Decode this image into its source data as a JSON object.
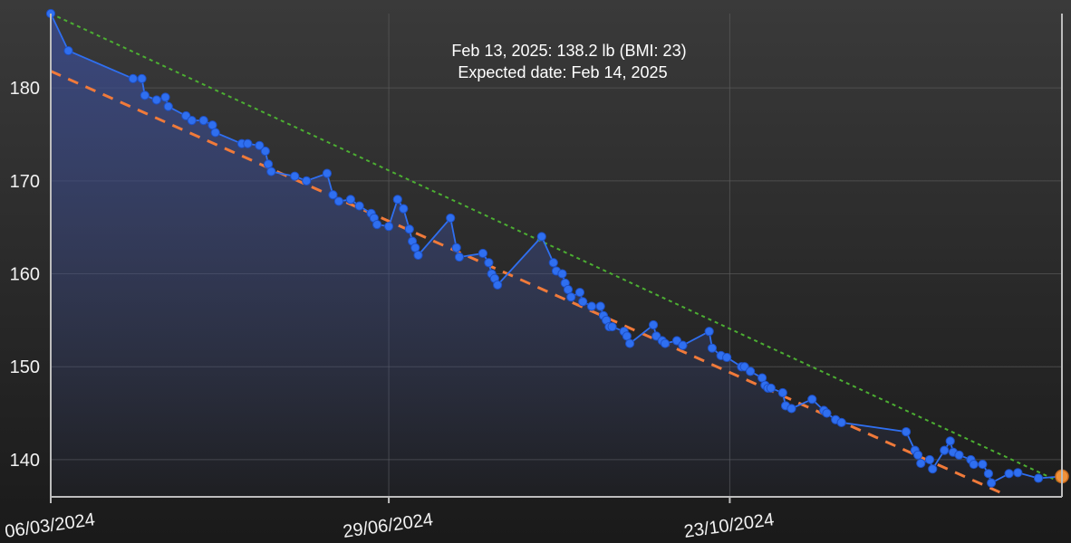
{
  "info": {
    "line1": "Feb 13, 2025: 138.2 lb (BMI: 23)",
    "line2": "Expected date: Feb 14, 2025"
  },
  "colors": {
    "background_top": "#3a3a3a",
    "background_bottom": "#1a1a1a",
    "series": "#2f6ff0",
    "area_fill": "#3a4a8a",
    "trend_dashed": "#f07a3a",
    "target_dotted": "#4caf32",
    "highlight_point": "#f0923a",
    "grid": "#5a5a5a",
    "axis": "#bdbdbd"
  },
  "chart_data": {
    "type": "line",
    "x_axis": {
      "type": "date",
      "range": [
        "2024-03-06",
        "2025-02-13"
      ],
      "ticks": [
        {
          "date": "2024-03-06",
          "label": "06/03/2024"
        },
        {
          "date": "2024-06-29",
          "label": "29/06/2024"
        },
        {
          "date": "2024-10-23",
          "label": "23/10/2024"
        }
      ],
      "label_rotation_deg": -8
    },
    "y_axis": {
      "range": [
        136,
        188
      ],
      "ticks": [
        140,
        150,
        160,
        170,
        180
      ],
      "position": "left"
    },
    "grid": true,
    "series": [
      {
        "style": "line-with-points-and-area",
        "points": [
          [
            "2024-03-06",
            188.0
          ],
          [
            "2024-03-12",
            184.0
          ],
          [
            "2024-04-03",
            181.0
          ],
          [
            "2024-04-06",
            181.0
          ],
          [
            "2024-04-07",
            179.2
          ],
          [
            "2024-04-11",
            178.7
          ],
          [
            "2024-04-14",
            179.0
          ],
          [
            "2024-04-15",
            178.0
          ],
          [
            "2024-04-21",
            177.0
          ],
          [
            "2024-04-23",
            176.5
          ],
          [
            "2024-04-27",
            176.5
          ],
          [
            "2024-04-30",
            176.0
          ],
          [
            "2024-05-01",
            175.2
          ],
          [
            "2024-05-10",
            174.0
          ],
          [
            "2024-05-12",
            174.0
          ],
          [
            "2024-05-16",
            173.8
          ],
          [
            "2024-05-18",
            173.2
          ],
          [
            "2024-05-19",
            171.8
          ],
          [
            "2024-05-20",
            171.0
          ],
          [
            "2024-05-28",
            170.5
          ],
          [
            "2024-06-01",
            170.0
          ],
          [
            "2024-06-08",
            170.8
          ],
          [
            "2024-06-10",
            168.5
          ],
          [
            "2024-06-12",
            167.8
          ],
          [
            "2024-06-16",
            168.0
          ],
          [
            "2024-06-19",
            167.3
          ],
          [
            "2024-06-23",
            166.5
          ],
          [
            "2024-06-24",
            166.0
          ],
          [
            "2024-06-25",
            165.3
          ],
          [
            "2024-06-29",
            165.1
          ],
          [
            "2024-07-02",
            168.0
          ],
          [
            "2024-07-04",
            167.0
          ],
          [
            "2024-07-06",
            164.8
          ],
          [
            "2024-07-07",
            163.5
          ],
          [
            "2024-07-08",
            162.8
          ],
          [
            "2024-07-09",
            162.0
          ],
          [
            "2024-07-20",
            166.0
          ],
          [
            "2024-07-22",
            162.8
          ],
          [
            "2024-07-23",
            161.8
          ],
          [
            "2024-07-31",
            162.2
          ],
          [
            "2024-08-02",
            161.2
          ],
          [
            "2024-08-03",
            160.0
          ],
          [
            "2024-08-04",
            159.5
          ],
          [
            "2024-08-05",
            158.8
          ],
          [
            "2024-08-20",
            164.0
          ],
          [
            "2024-08-24",
            161.2
          ],
          [
            "2024-08-25",
            160.3
          ],
          [
            "2024-08-27",
            160.0
          ],
          [
            "2024-08-28",
            159.0
          ],
          [
            "2024-08-29",
            158.3
          ],
          [
            "2024-08-30",
            157.5
          ],
          [
            "2024-09-02",
            158.0
          ],
          [
            "2024-09-03",
            157.0
          ],
          [
            "2024-09-06",
            156.5
          ],
          [
            "2024-09-09",
            156.5
          ],
          [
            "2024-09-10",
            155.5
          ],
          [
            "2024-09-11",
            155.0
          ],
          [
            "2024-09-12",
            154.3
          ],
          [
            "2024-09-13",
            154.3
          ],
          [
            "2024-09-17",
            153.8
          ],
          [
            "2024-09-18",
            153.3
          ],
          [
            "2024-09-19",
            152.5
          ],
          [
            "2024-09-27",
            154.5
          ],
          [
            "2024-09-28",
            153.3
          ],
          [
            "2024-09-30",
            152.8
          ],
          [
            "2024-10-01",
            152.5
          ],
          [
            "2024-10-05",
            152.8
          ],
          [
            "2024-10-07",
            152.3
          ],
          [
            "2024-10-16",
            153.8
          ],
          [
            "2024-10-17",
            152.0
          ],
          [
            "2024-10-20",
            151.2
          ],
          [
            "2024-10-22",
            151.0
          ],
          [
            "2024-10-27",
            150.0
          ],
          [
            "2024-10-28",
            150.0
          ],
          [
            "2024-10-30",
            149.5
          ],
          [
            "2024-11-03",
            148.8
          ],
          [
            "2024-11-04",
            148.0
          ],
          [
            "2024-11-05",
            147.7
          ],
          [
            "2024-11-06",
            147.7
          ],
          [
            "2024-11-10",
            147.2
          ],
          [
            "2024-11-11",
            145.8
          ],
          [
            "2024-11-13",
            145.5
          ],
          [
            "2024-11-20",
            146.5
          ],
          [
            "2024-11-24",
            145.3
          ],
          [
            "2024-11-25",
            145.0
          ],
          [
            "2024-11-28",
            144.3
          ],
          [
            "2024-11-30",
            144.0
          ],
          [
            "2024-12-22",
            143.0
          ],
          [
            "2024-12-25",
            141.0
          ],
          [
            "2024-12-26",
            140.5
          ],
          [
            "2024-12-27",
            139.6
          ],
          [
            "2024-12-30",
            140.0
          ],
          [
            "2024-12-31",
            139.0
          ],
          [
            "2025-01-04",
            141.0
          ],
          [
            "2025-01-06",
            142.0
          ],
          [
            "2025-01-07",
            140.8
          ],
          [
            "2025-01-09",
            140.5
          ],
          [
            "2025-01-13",
            140.0
          ],
          [
            "2025-01-14",
            139.5
          ],
          [
            "2025-01-17",
            139.5
          ],
          [
            "2025-01-19",
            138.5
          ],
          [
            "2025-01-20",
            137.5
          ],
          [
            "2025-01-26",
            138.5
          ],
          [
            "2025-01-29",
            138.6
          ],
          [
            "2025-02-05",
            138.0
          ],
          [
            "2025-02-13",
            138.2
          ]
        ]
      }
    ],
    "trend_line": {
      "style": "dashed",
      "from": [
        "2024-03-06",
        181.8
      ],
      "to": [
        "2025-01-25",
        136.2
      ]
    },
    "target_line": {
      "style": "dotted",
      "from": [
        "2024-03-06",
        188.0
      ],
      "to": [
        "2025-02-13",
        137.5
      ]
    },
    "highlight": {
      "date": "2025-02-13",
      "value": 138.2
    }
  }
}
